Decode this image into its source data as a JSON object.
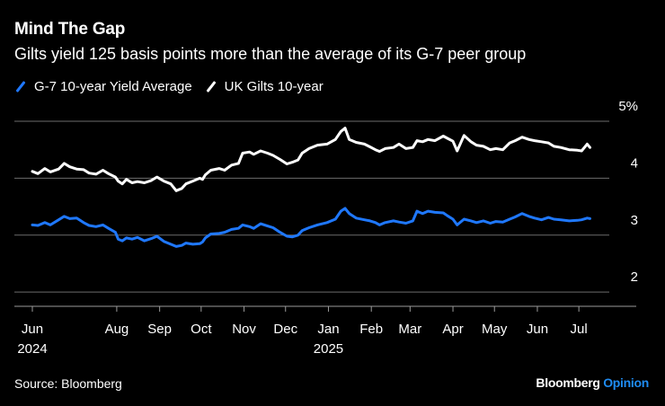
{
  "header": {
    "title": "Mind The Gap",
    "subtitle": "Gilts yield 125 basis points more than the average of its G-7 peer group"
  },
  "footer": {
    "source": "Source: Bloomberg",
    "brand_name": "Bloomberg",
    "brand_suffix": "Opinion"
  },
  "colors": {
    "background": "#000000",
    "g7": "#1f78ff",
    "uk": "#ffffff",
    "grid": "#6b6b6b",
    "brand_accent": "#1f8cf2"
  },
  "chart_data": {
    "type": "line",
    "title": "Mind The Gap",
    "subtitle": "Gilts yield 125 basis points more than the average of its G-7 peer group",
    "xlabel": "",
    "ylabel": "",
    "ylim": [
      1.75,
      5.0
    ],
    "y_ticks": [
      {
        "value": 5,
        "label": "5%"
      },
      {
        "value": 4,
        "label": "4"
      },
      {
        "value": 3,
        "label": "3"
      },
      {
        "value": 2,
        "label": "2"
      }
    ],
    "x_ticks": [
      {
        "label": "Jun",
        "sub": "2024",
        "date": "2024-06-01"
      },
      {
        "label": "Aug",
        "sub": "",
        "date": "2024-08-01"
      },
      {
        "label": "Sep",
        "sub": "",
        "date": "2024-09-01"
      },
      {
        "label": "Oct",
        "sub": "",
        "date": "2024-10-01"
      },
      {
        "label": "Nov",
        "sub": "",
        "date": "2024-11-01"
      },
      {
        "label": "Dec",
        "sub": "",
        "date": "2024-12-01"
      },
      {
        "label": "Jan",
        "sub": "2025",
        "date": "2025-01-01"
      },
      {
        "label": "Feb",
        "sub": "",
        "date": "2025-02-01"
      },
      {
        "label": "Mar",
        "sub": "",
        "date": "2025-03-01"
      },
      {
        "label": "Apr",
        "sub": "",
        "date": "2025-04-01"
      },
      {
        "label": "May",
        "sub": "",
        "date": "2025-05-01"
      },
      {
        "label": "Jun",
        "sub": "",
        "date": "2025-06-01"
      },
      {
        "label": "Jul",
        "sub": "",
        "date": "2025-07-01"
      }
    ],
    "x_range": [
      "2024-06-01",
      "2025-07-10"
    ],
    "grid": true,
    "legend_position": "top-left",
    "series": [
      {
        "name": "G-7 10-year Yield Average",
        "color": "#1f78ff",
        "points": [
          [
            "2024-06-01",
            3.18
          ],
          [
            "2024-06-05",
            3.17
          ],
          [
            "2024-06-10",
            3.22
          ],
          [
            "2024-06-14",
            3.18
          ],
          [
            "2024-06-20",
            3.27
          ],
          [
            "2024-06-24",
            3.33
          ],
          [
            "2024-06-28",
            3.29
          ],
          [
            "2024-07-03",
            3.3
          ],
          [
            "2024-07-08",
            3.22
          ],
          [
            "2024-07-12",
            3.17
          ],
          [
            "2024-07-17",
            3.15
          ],
          [
            "2024-07-22",
            3.18
          ],
          [
            "2024-07-26",
            3.12
          ],
          [
            "2024-07-31",
            3.05
          ],
          [
            "2024-08-02",
            2.93
          ],
          [
            "2024-08-05",
            2.9
          ],
          [
            "2024-08-08",
            2.95
          ],
          [
            "2024-08-12",
            2.93
          ],
          [
            "2024-08-16",
            2.96
          ],
          [
            "2024-08-21",
            2.9
          ],
          [
            "2024-08-26",
            2.94
          ],
          [
            "2024-08-30",
            2.98
          ],
          [
            "2024-09-04",
            2.89
          ],
          [
            "2024-09-09",
            2.84
          ],
          [
            "2024-09-13",
            2.8
          ],
          [
            "2024-09-17",
            2.82
          ],
          [
            "2024-09-20",
            2.86
          ],
          [
            "2024-09-25",
            2.84
          ],
          [
            "2024-09-30",
            2.85
          ],
          [
            "2024-10-02",
            2.88
          ],
          [
            "2024-10-04",
            2.95
          ],
          [
            "2024-10-08",
            3.02
          ],
          [
            "2024-10-14",
            3.03
          ],
          [
            "2024-10-18",
            3.05
          ],
          [
            "2024-10-23",
            3.1
          ],
          [
            "2024-10-28",
            3.12
          ],
          [
            "2024-10-31",
            3.18
          ],
          [
            "2024-11-05",
            3.15
          ],
          [
            "2024-11-08",
            3.12
          ],
          [
            "2024-11-13",
            3.2
          ],
          [
            "2024-11-18",
            3.16
          ],
          [
            "2024-11-22",
            3.13
          ],
          [
            "2024-11-27",
            3.05
          ],
          [
            "2024-12-02",
            2.98
          ],
          [
            "2024-12-06",
            2.97
          ],
          [
            "2024-12-10",
            3.0
          ],
          [
            "2024-12-13",
            3.08
          ],
          [
            "2024-12-18",
            3.13
          ],
          [
            "2024-12-24",
            3.18
          ],
          [
            "2024-12-31",
            3.22
          ],
          [
            "2025-01-06",
            3.28
          ],
          [
            "2025-01-10",
            3.42
          ],
          [
            "2025-01-13",
            3.47
          ],
          [
            "2025-01-16",
            3.38
          ],
          [
            "2025-01-21",
            3.3
          ],
          [
            "2025-01-27",
            3.27
          ],
          [
            "2025-01-31",
            3.25
          ],
          [
            "2025-02-04",
            3.22
          ],
          [
            "2025-02-07",
            3.18
          ],
          [
            "2025-02-11",
            3.22
          ],
          [
            "2025-02-17",
            3.25
          ],
          [
            "2025-02-21",
            3.23
          ],
          [
            "2025-02-26",
            3.21
          ],
          [
            "2025-03-03",
            3.25
          ],
          [
            "2025-03-06",
            3.42
          ],
          [
            "2025-03-10",
            3.38
          ],
          [
            "2025-03-14",
            3.42
          ],
          [
            "2025-03-19",
            3.4
          ],
          [
            "2025-03-25",
            3.39
          ],
          [
            "2025-03-28",
            3.34
          ],
          [
            "2025-04-01",
            3.28
          ],
          [
            "2025-04-04",
            3.18
          ],
          [
            "2025-04-09",
            3.28
          ],
          [
            "2025-04-14",
            3.25
          ],
          [
            "2025-04-18",
            3.22
          ],
          [
            "2025-04-23",
            3.25
          ],
          [
            "2025-04-28",
            3.21
          ],
          [
            "2025-05-02",
            3.24
          ],
          [
            "2025-05-07",
            3.23
          ],
          [
            "2025-05-12",
            3.28
          ],
          [
            "2025-05-16",
            3.32
          ],
          [
            "2025-05-21",
            3.38
          ],
          [
            "2025-05-26",
            3.33
          ],
          [
            "2025-05-30",
            3.3
          ],
          [
            "2025-06-04",
            3.27
          ],
          [
            "2025-06-09",
            3.31
          ],
          [
            "2025-06-13",
            3.28
          ],
          [
            "2025-06-18",
            3.27
          ],
          [
            "2025-06-24",
            3.25
          ],
          [
            "2025-06-30",
            3.26
          ],
          [
            "2025-07-03",
            3.27
          ],
          [
            "2025-07-07",
            3.3
          ],
          [
            "2025-07-09",
            3.29
          ]
        ]
      },
      {
        "name": "UK Gilts 10-year",
        "color": "#ffffff",
        "points": [
          [
            "2024-06-01",
            4.12
          ],
          [
            "2024-06-05",
            4.08
          ],
          [
            "2024-06-10",
            4.17
          ],
          [
            "2024-06-14",
            4.11
          ],
          [
            "2024-06-20",
            4.16
          ],
          [
            "2024-06-24",
            4.26
          ],
          [
            "2024-06-28",
            4.2
          ],
          [
            "2024-07-03",
            4.16
          ],
          [
            "2024-07-08",
            4.15
          ],
          [
            "2024-07-12",
            4.09
          ],
          [
            "2024-07-17",
            4.07
          ],
          [
            "2024-07-22",
            4.14
          ],
          [
            "2024-07-26",
            4.08
          ],
          [
            "2024-07-31",
            4.02
          ],
          [
            "2024-08-02",
            3.95
          ],
          [
            "2024-08-05",
            3.9
          ],
          [
            "2024-08-08",
            3.98
          ],
          [
            "2024-08-12",
            3.92
          ],
          [
            "2024-08-16",
            3.94
          ],
          [
            "2024-08-21",
            3.92
          ],
          [
            "2024-08-26",
            3.96
          ],
          [
            "2024-08-30",
            4.02
          ],
          [
            "2024-09-04",
            3.95
          ],
          [
            "2024-09-09",
            3.9
          ],
          [
            "2024-09-13",
            3.78
          ],
          [
            "2024-09-17",
            3.82
          ],
          [
            "2024-09-20",
            3.9
          ],
          [
            "2024-09-25",
            3.95
          ],
          [
            "2024-09-30",
            4.0
          ],
          [
            "2024-10-02",
            3.98
          ],
          [
            "2024-10-04",
            4.06
          ],
          [
            "2024-10-08",
            4.14
          ],
          [
            "2024-10-14",
            4.17
          ],
          [
            "2024-10-18",
            4.14
          ],
          [
            "2024-10-23",
            4.23
          ],
          [
            "2024-10-28",
            4.26
          ],
          [
            "2024-10-31",
            4.44
          ],
          [
            "2024-11-05",
            4.46
          ],
          [
            "2024-11-08",
            4.42
          ],
          [
            "2024-11-13",
            4.48
          ],
          [
            "2024-11-18",
            4.44
          ],
          [
            "2024-11-22",
            4.4
          ],
          [
            "2024-11-27",
            4.33
          ],
          [
            "2024-12-02",
            4.25
          ],
          [
            "2024-12-06",
            4.28
          ],
          [
            "2024-12-10",
            4.32
          ],
          [
            "2024-12-13",
            4.44
          ],
          [
            "2024-12-18",
            4.52
          ],
          [
            "2024-12-24",
            4.58
          ],
          [
            "2024-12-31",
            4.6
          ],
          [
            "2025-01-06",
            4.68
          ],
          [
            "2025-01-10",
            4.82
          ],
          [
            "2025-01-13",
            4.88
          ],
          [
            "2025-01-16",
            4.68
          ],
          [
            "2025-01-21",
            4.63
          ],
          [
            "2025-01-27",
            4.6
          ],
          [
            "2025-01-31",
            4.55
          ],
          [
            "2025-02-04",
            4.5
          ],
          [
            "2025-02-07",
            4.47
          ],
          [
            "2025-02-11",
            4.52
          ],
          [
            "2025-02-17",
            4.54
          ],
          [
            "2025-02-21",
            4.6
          ],
          [
            "2025-02-26",
            4.52
          ],
          [
            "2025-03-03",
            4.54
          ],
          [
            "2025-03-06",
            4.66
          ],
          [
            "2025-03-10",
            4.64
          ],
          [
            "2025-03-14",
            4.68
          ],
          [
            "2025-03-19",
            4.66
          ],
          [
            "2025-03-25",
            4.74
          ],
          [
            "2025-03-28",
            4.7
          ],
          [
            "2025-04-01",
            4.65
          ],
          [
            "2025-04-04",
            4.48
          ],
          [
            "2025-04-09",
            4.75
          ],
          [
            "2025-04-14",
            4.64
          ],
          [
            "2025-04-18",
            4.58
          ],
          [
            "2025-04-23",
            4.56
          ],
          [
            "2025-04-28",
            4.5
          ],
          [
            "2025-05-02",
            4.52
          ],
          [
            "2025-05-07",
            4.5
          ],
          [
            "2025-05-12",
            4.62
          ],
          [
            "2025-05-16",
            4.66
          ],
          [
            "2025-05-21",
            4.72
          ],
          [
            "2025-05-26",
            4.68
          ],
          [
            "2025-05-30",
            4.66
          ],
          [
            "2025-06-04",
            4.64
          ],
          [
            "2025-06-09",
            4.62
          ],
          [
            "2025-06-13",
            4.56
          ],
          [
            "2025-06-18",
            4.54
          ],
          [
            "2025-06-24",
            4.5
          ],
          [
            "2025-06-30",
            4.49
          ],
          [
            "2025-07-03",
            4.48
          ],
          [
            "2025-07-07",
            4.6
          ],
          [
            "2025-07-09",
            4.54
          ]
        ]
      }
    ]
  }
}
